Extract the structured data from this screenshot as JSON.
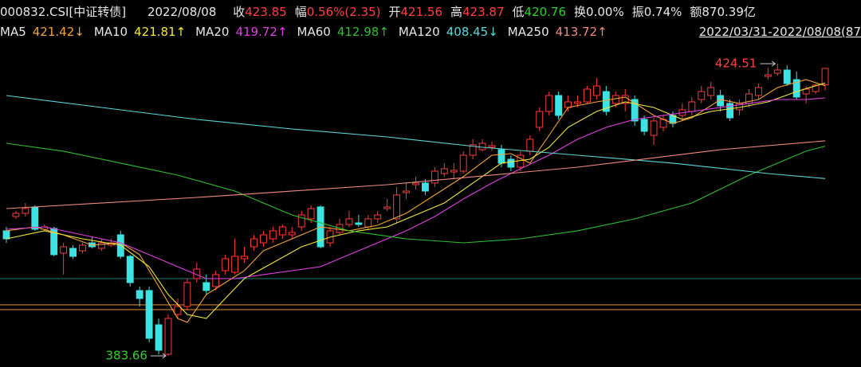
{
  "chart_data": {
    "type": "candlestick",
    "title": "000832.CSI[中证转债]",
    "date": "2022/08/08",
    "range": "2022/03/31-2022/08/08(87",
    "stats": [
      {
        "label": "收",
        "value": 423.85,
        "color": "#ff4040"
      },
      {
        "label": "幅",
        "value": "0.56%(2.35)",
        "color": "#ff4040"
      },
      {
        "label": "开",
        "value": 421.56,
        "color": "#ff4040"
      },
      {
        "label": "高",
        "value": 423.87,
        "color": "#ff4040"
      },
      {
        "label": "低",
        "value": 420.76,
        "color": "#30d030"
      },
      {
        "label": "换",
        "value": "0.00%",
        "color": "#e8e8e8"
      },
      {
        "label": "振",
        "value": "0.74%",
        "color": "#e8e8e8"
      },
      {
        "label": "额",
        "value": "870.39亿",
        "color": "#e8e8e8"
      }
    ],
    "up_color": "#ff3a3a",
    "down_color": "#3de3e3",
    "ylim": [
      382.1,
      427.29
    ],
    "open": [
      401.14,
      403.14,
      403.59,
      404.48,
      401.36,
      401.47,
      398.02,
      398.69,
      398.35,
      399.46,
      398.69,
      399.13,
      400.58,
      397.57,
      392.79,
      392.79,
      388.0,
      383.89,
      389.45,
      390.56,
      394.46,
      393.9,
      393.35,
      395.57,
      395.35,
      397.24,
      398.91,
      399.46,
      400.02,
      400.58,
      400.58,
      401.69,
      402.81,
      404.48,
      399.46,
      400.91,
      402.03,
      402.25,
      401.69,
      402.81,
      404.25,
      402.81,
      406.48,
      407.59,
      407.82,
      407.82,
      409.15,
      409.37,
      409.48,
      411.71,
      412.49,
      412.82,
      412.49,
      411.15,
      410.04,
      412.27,
      415.61,
      417.83,
      420.06,
      418.39,
      418.95,
      419.17,
      420.06,
      420.61,
      418.95,
      418.95,
      419.5,
      416.72,
      414.49,
      415.61,
      417.28,
      417.28,
      417.83,
      419.5,
      420.06,
      420.06,
      418.95,
      418.06,
      418.95,
      420.06,
      422.73,
      423.17,
      423.62,
      422.28,
      420.28,
      420.61,
      421.56
    ],
    "high": [
      401.69,
      403.92,
      405.03,
      404.7,
      402.03,
      401.69,
      399.46,
      399.13,
      399.46,
      400.25,
      400.02,
      400.02,
      401.14,
      397.8,
      393.35,
      393.35,
      388.89,
      389.45,
      391.68,
      394.46,
      396.68,
      395.02,
      395.57,
      397.8,
      400.02,
      398.91,
      400.58,
      401.14,
      401.69,
      402.03,
      401.69,
      403.92,
      404.7,
      404.7,
      401.69,
      402.81,
      403.92,
      403.36,
      403.36,
      403.92,
      405.59,
      407.26,
      407.82,
      408.71,
      408.37,
      410.04,
      410.6,
      410.6,
      412.27,
      413.94,
      413.94,
      413.6,
      413.16,
      411.71,
      412.27,
      414.49,
      418.39,
      420.61,
      420.61,
      420.06,
      420.06,
      421.39,
      422.51,
      421.39,
      420.61,
      420.95,
      420.06,
      417.28,
      416.94,
      417.28,
      417.83,
      418.95,
      419.84,
      421.39,
      421.95,
      420.84,
      419.5,
      419.5,
      420.95,
      421.73,
      423.95,
      424.51,
      424.29,
      423.4,
      421.39,
      421.73,
      423.87
    ],
    "low": [
      399.46,
      402.81,
      403.14,
      401.14,
      401.14,
      397.57,
      395.02,
      397.24,
      398.02,
      398.69,
      398.35,
      398.91,
      397.24,
      393.35,
      390.56,
      385.55,
      383.89,
      383.66,
      388.89,
      390.01,
      393.9,
      392.23,
      392.79,
      395.02,
      395.02,
      396.68,
      398.35,
      398.91,
      399.46,
      400.02,
      400.02,
      401.14,
      402.25,
      398.69,
      398.91,
      400.58,
      401.69,
      401.69,
      401.36,
      402.25,
      403.92,
      402.25,
      405.59,
      406.92,
      406.15,
      407.26,
      408.71,
      408.37,
      409.15,
      411.15,
      412.27,
      412.27,
      410.04,
      409.48,
      409.48,
      411.71,
      415.05,
      417.28,
      416.72,
      417.83,
      418.39,
      418.95,
      419.5,
      417.28,
      418.39,
      417.83,
      415.83,
      414.49,
      413.16,
      415.05,
      415.61,
      416.72,
      417.28,
      418.95,
      419.5,
      417.83,
      416.5,
      417.28,
      418.39,
      419.5,
      422.28,
      422.84,
      421.39,
      419.5,
      418.95,
      420.28,
      420.76
    ],
    "close": [
      400.02,
      403.59,
      404.25,
      401.36,
      401.69,
      397.8,
      398.91,
      397.57,
      399.13,
      398.91,
      399.46,
      399.46,
      397.57,
      393.9,
      391.68,
      386.11,
      384.44,
      388.89,
      390.56,
      393.9,
      395.79,
      392.79,
      395.02,
      397.24,
      397.57,
      397.57,
      400.02,
      400.58,
      401.14,
      401.69,
      400.91,
      403.36,
      404.25,
      398.91,
      401.14,
      402.03,
      402.81,
      402.03,
      402.81,
      403.36,
      404.48,
      406.15,
      406.7,
      407.82,
      406.7,
      409.48,
      409.82,
      409.6,
      411.71,
      413.16,
      413.38,
      413.05,
      410.6,
      410.04,
      411.71,
      413.94,
      417.83,
      420.06,
      417.28,
      419.17,
      419.17,
      420.95,
      421.39,
      417.83,
      420.06,
      420.06,
      416.5,
      415.05,
      416.5,
      416.72,
      416.16,
      418.06,
      419.17,
      420.61,
      421.17,
      418.61,
      416.94,
      418.95,
      420.28,
      421.17,
      422.95,
      423.62,
      421.73,
      419.84,
      420.95,
      421.5,
      423.85
    ],
    "series": [
      {
        "name": "MA5",
        "label": "421.42↓",
        "color": "#f2a33a",
        "x": [
          0,
          3,
          6,
          9,
          12,
          14,
          16,
          18,
          19,
          21,
          23,
          25,
          27,
          30,
          33,
          36,
          39,
          42,
          45,
          48,
          51,
          53,
          55,
          57,
          59,
          62,
          65,
          68,
          70,
          72,
          75,
          77,
          79,
          81,
          84,
          86
        ],
        "values": [
          401.14,
          401.69,
          400.58,
          399.13,
          399.46,
          397.8,
          393.35,
          388.89,
          388.34,
          392.23,
          393.9,
          395.57,
          398.35,
          400.02,
          401.69,
          401.14,
          401.92,
          403.59,
          406.15,
          408.71,
          411.71,
          411.93,
          410.6,
          414.49,
          418.39,
          419.17,
          419.84,
          417.28,
          416.16,
          416.94,
          419.5,
          418.95,
          419.5,
          421.17,
          422.28,
          421.42
        ]
      },
      {
        "name": "MA10",
        "label": "421.81↑",
        "color": "#f0e83a",
        "x": [
          0,
          4,
          8,
          12,
          15,
          17,
          19,
          21,
          23,
          25,
          28,
          31,
          34,
          37,
          40,
          43,
          46,
          49,
          52,
          55,
          57,
          59,
          62,
          65,
          68,
          71,
          74,
          77,
          80,
          83,
          86
        ],
        "values": [
          400.02,
          401.14,
          400.02,
          399.13,
          396.13,
          392.23,
          389.45,
          388.89,
          391.68,
          394.46,
          396.68,
          398.91,
          400.25,
          401.14,
          401.69,
          403.36,
          405.03,
          407.82,
          410.6,
          411.15,
          412.82,
          415.61,
          417.83,
          419.17,
          418.39,
          416.72,
          417.83,
          418.39,
          419.17,
          420.61,
          421.81
        ]
      },
      {
        "name": "MA20",
        "label": "419.72↑",
        "color": "#e040e0",
        "x": [
          0,
          4,
          8,
          12,
          15,
          18,
          21,
          24,
          27,
          30,
          33,
          36,
          39,
          42,
          45,
          48,
          51,
          54,
          57,
          60,
          63,
          66,
          69,
          72,
          75,
          78,
          81,
          84,
          86
        ],
        "values": [
          401.36,
          401.69,
          400.58,
          399.46,
          397.8,
          396.13,
          394.46,
          394.46,
          395.02,
          395.57,
          396.13,
          397.8,
          399.46,
          401.14,
          403.14,
          405.59,
          407.82,
          409.82,
          411.71,
          413.94,
          415.61,
          416.72,
          417.28,
          417.83,
          418.39,
          418.95,
          419.5,
          419.5,
          419.72
        ]
      },
      {
        "name": "MA60",
        "label": "412.98↑",
        "color": "#2fbf2f",
        "x": [
          0,
          6,
          12,
          18,
          24,
          30,
          36,
          42,
          48,
          54,
          60,
          66,
          72,
          78,
          84,
          86
        ],
        "values": [
          413.38,
          412.27,
          410.6,
          408.93,
          406.7,
          403.36,
          401.14,
          400.02,
          399.46,
          400.02,
          401.14,
          402.81,
          405.03,
          408.93,
          412.27,
          412.98
        ]
      },
      {
        "name": "MA120",
        "label": "408.45↓",
        "color": "#5fd6d6",
        "x": [
          0,
          10,
          20,
          30,
          40,
          50,
          60,
          70,
          80,
          86
        ],
        "values": [
          420.06,
          418.39,
          416.72,
          415.38,
          414.27,
          412.82,
          411.71,
          410.6,
          409.15,
          408.45
        ]
      },
      {
        "name": "MA250",
        "label": "413.72↑",
        "color": "#f08a80",
        "x": [
          0,
          20,
          40,
          60,
          75,
          86
        ],
        "values": [
          404.25,
          405.81,
          407.59,
          410.04,
          412.49,
          413.72
        ]
      }
    ],
    "hlines": [
      {
        "value": 394.46,
        "color": "#1e6b6b"
      },
      {
        "value": 390.79,
        "color": "#d08030"
      },
      {
        "value": 390.12,
        "color": "#d08030"
      }
    ],
    "max_label": 424.51,
    "min_label": 383.66,
    "max_color": "#ff4040",
    "min_color": "#30d030"
  }
}
